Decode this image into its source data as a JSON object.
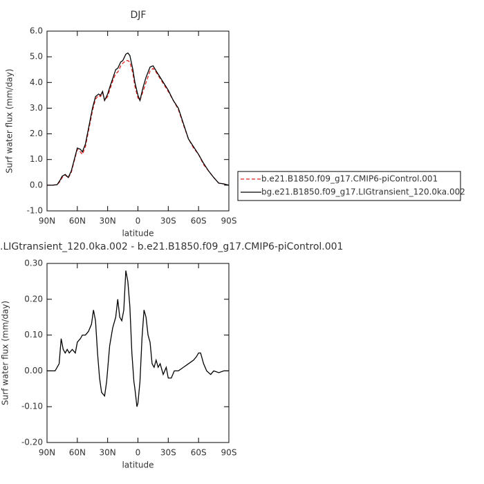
{
  "chart_data": [
    {
      "type": "line",
      "title": "DJF",
      "xlabel": "latitude",
      "ylabel": "Surf water flux (mm/day)",
      "x": [
        90,
        85,
        80,
        77,
        75,
        72,
        69,
        66,
        63,
        60,
        57,
        55,
        52,
        48,
        45,
        42,
        39,
        37,
        35,
        33,
        30,
        28,
        25,
        22,
        20,
        17,
        15,
        12,
        10,
        8,
        5,
        3,
        0,
        -2,
        -5,
        -8,
        -12,
        -15,
        -18,
        -22,
        -26,
        -30,
        -35,
        -40,
        -45,
        -50,
        -55,
        -60,
        -65,
        -70,
        -75,
        -80,
        -85,
        -90
      ],
      "series": [
        {
          "name": "b.e21.B1850.f09_g17.CMIP6-piControl.001",
          "color": "#e0201b",
          "dash": true,
          "values": [
            0,
            0,
            0.02,
            0.15,
            0.3,
            0.4,
            0.28,
            0.5,
            0.95,
            1.4,
            1.3,
            1.2,
            1.5,
            2.3,
            2.9,
            3.35,
            3.5,
            3.45,
            3.6,
            3.3,
            3.45,
            3.7,
            4.05,
            4.35,
            4.4,
            4.65,
            4.75,
            4.85,
            4.85,
            4.8,
            4.35,
            3.85,
            3.4,
            3.3,
            3.65,
            4.0,
            4.45,
            4.55,
            4.4,
            4.15,
            3.9,
            3.65,
            3.3,
            2.95,
            2.35,
            1.8,
            1.45,
            1.2,
            0.8,
            0.55,
            0.3,
            0.08,
            0.05,
            0.0
          ]
        },
        {
          "name": "bg.e21.B1850.f09_g17.LIGtransient_120.0ka.002",
          "color": "#000000",
          "dash": false,
          "values": [
            0,
            0,
            0.02,
            0.2,
            0.35,
            0.42,
            0.3,
            0.55,
            1.0,
            1.45,
            1.4,
            1.3,
            1.6,
            2.4,
            3.0,
            3.45,
            3.55,
            3.5,
            3.65,
            3.3,
            3.55,
            3.8,
            4.15,
            4.5,
            4.55,
            4.8,
            4.85,
            5.1,
            5.15,
            5.05,
            4.5,
            4.0,
            3.5,
            3.3,
            3.8,
            4.2,
            4.6,
            4.65,
            4.45,
            4.2,
            3.95,
            3.7,
            3.3,
            3.0,
            2.4,
            1.8,
            1.5,
            1.2,
            0.85,
            0.55,
            0.3,
            0.08,
            0.05,
            0.0
          ]
        }
      ],
      "xlim": [
        90,
        -90
      ],
      "xticks": [
        {
          "value": 90,
          "label": "90N"
        },
        {
          "value": 60,
          "label": "60N"
        },
        {
          "value": 30,
          "label": "30N"
        },
        0,
        {
          "value": -30,
          "label": "30S"
        },
        {
          "value": -60,
          "label": "60S"
        },
        {
          "value": -90,
          "label": "90S"
        }
      ],
      "ylim": [
        -1.0,
        6.0
      ],
      "yticks": [
        {
          "value": -1.0,
          "label": "-1.0"
        },
        {
          "value": 0,
          "label": "0.0"
        },
        {
          "value": 1.0,
          "label": "1.0"
        },
        {
          "value": 2.0,
          "label": "2.0"
        },
        {
          "value": 3.0,
          "label": "3.0"
        },
        {
          "value": 4.0,
          "label": "4.0"
        },
        {
          "value": 5.0,
          "label": "5.0"
        },
        {
          "value": 6.0,
          "label": "6.0"
        }
      ],
      "legend": "right"
    },
    {
      "type": "line",
      "title": ".LIGtransient_120.0ka.002 - b.e21.B1850.f09_g17.CMIP6-piControl.001",
      "xlabel": "latitude",
      "ylabel": "Surf water flux (mm/day)",
      "x": [
        90,
        82,
        78,
        76,
        74,
        72,
        70,
        68,
        65,
        62,
        60,
        57,
        55,
        52,
        49,
        46,
        44,
        42,
        40,
        38,
        36,
        33,
        31,
        28,
        25,
        22,
        20,
        18,
        16,
        14,
        12,
        10,
        8,
        6,
        4,
        3,
        1,
        0,
        -2,
        -4,
        -6,
        -8,
        -10,
        -12,
        -14,
        -16,
        -18,
        -20,
        -22,
        -25,
        -28,
        -30,
        -33,
        -36,
        -40,
        -45,
        -50,
        -55,
        -58,
        -60,
        -62,
        -65,
        -68,
        -72,
        -75,
        -80,
        -85,
        -90
      ],
      "series": [
        {
          "color": "#000000",
          "dash": false,
          "values": [
            0,
            0,
            0.02,
            0.09,
            0.06,
            0.05,
            0.06,
            0.05,
            0.06,
            0.05,
            0.08,
            0.09,
            0.1,
            0.1,
            0.11,
            0.13,
            0.17,
            0.14,
            0.05,
            -0.02,
            -0.06,
            -0.07,
            -0.03,
            0.07,
            0.12,
            0.15,
            0.2,
            0.15,
            0.14,
            0.17,
            0.28,
            0.25,
            0.18,
            0.05,
            -0.03,
            -0.05,
            -0.1,
            -0.09,
            -0.03,
            0.09,
            0.17,
            0.15,
            0.1,
            0.08,
            0.02,
            0.01,
            0.03,
            0.01,
            0.02,
            -0.01,
            0.01,
            -0.02,
            -0.02,
            0,
            0,
            0.01,
            0.02,
            0.03,
            0.04,
            0.05,
            0.05,
            0.02,
            0,
            -0.01,
            0,
            -0.005,
            0,
            0
          ]
        }
      ],
      "xlim": [
        90,
        -90
      ],
      "xticks": [
        {
          "value": 90,
          "label": "90N"
        },
        {
          "value": 60,
          "label": "60N"
        },
        {
          "value": 30,
          "label": "30N"
        },
        0,
        {
          "value": -30,
          "label": "30S"
        },
        {
          "value": -60,
          "label": "60S"
        },
        {
          "value": -90,
          "label": "90S"
        }
      ],
      "ylim": [
        -0.2,
        0.3
      ],
      "yticks": [
        {
          "value": -0.2,
          "label": "-0.20"
        },
        {
          "value": -0.1,
          "label": "-0.10"
        },
        {
          "value": 0,
          "label": "0.00"
        },
        {
          "value": 0.1,
          "label": "0.10"
        },
        {
          "value": 0.2,
          "label": "0.20"
        },
        {
          "value": 0.3,
          "label": "0.30"
        }
      ]
    }
  ]
}
